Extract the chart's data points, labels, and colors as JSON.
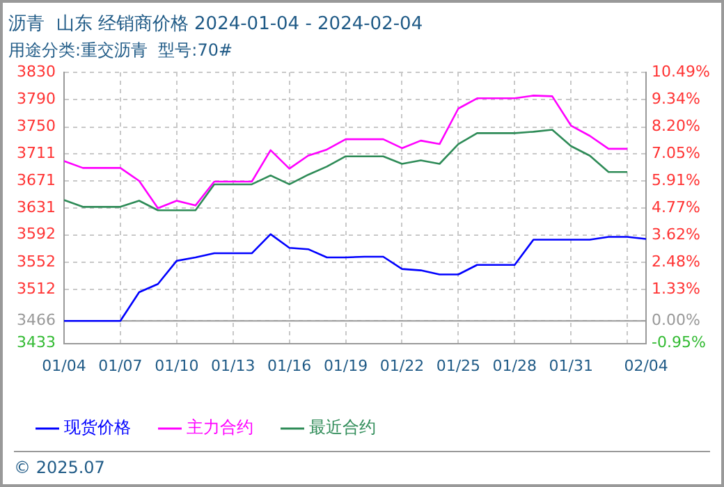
{
  "chart_data": {
    "type": "line",
    "title": "沥青  山东 经销商价格 2024-01-04 - 2024-02-04",
    "subtitle": "用途分类:重交沥青  型号:70#",
    "x": [
      "2024-01-04",
      "2024-01-05",
      "2024-01-06",
      "2024-01-07",
      "2024-01-08",
      "2024-01-09",
      "2024-01-10",
      "2024-01-11",
      "2024-01-12",
      "2024-01-13",
      "2024-01-14",
      "2024-01-15",
      "2024-01-16",
      "2024-01-17",
      "2024-01-18",
      "2024-01-19",
      "2024-01-20",
      "2024-01-21",
      "2024-01-22",
      "2024-01-23",
      "2024-01-24",
      "2024-01-25",
      "2024-01-26",
      "2024-01-27",
      "2024-01-28",
      "2024-01-29",
      "2024-01-30",
      "2024-01-31",
      "2024-02-01",
      "2024-02-02",
      "2024-02-03",
      "2024-02-04"
    ],
    "series": [
      {
        "name": "现货价格",
        "color": "#0000ff",
        "values": [
          3466,
          3466,
          3466,
          3466,
          3508,
          3520,
          3554,
          3559,
          3565,
          3565,
          3565,
          3593,
          3573,
          3571,
          3559,
          3559,
          3560,
          3560,
          3542,
          3540,
          3534,
          3534,
          3548,
          3548,
          3548,
          3585,
          3585,
          3585,
          3585,
          3589,
          3589,
          3586
        ]
      },
      {
        "name": "主力合约",
        "color": "#ff00ff",
        "values": [
          3700,
          3690,
          3690,
          3690,
          3671,
          3631,
          3642,
          3635,
          3670,
          3670,
          3670,
          3716,
          3689,
          3708,
          3717,
          3732,
          3732,
          3732,
          3719,
          3730,
          3725,
          3777,
          3792,
          3792,
          3792,
          3796,
          3795,
          3752,
          3737,
          3718,
          3718,
          null
        ]
      },
      {
        "name": "最近合约",
        "color": "#2e8b57",
        "values": [
          3643,
          3633,
          3633,
          3633,
          3642,
          3628,
          3628,
          3628,
          3666,
          3666,
          3666,
          3679,
          3666,
          3680,
          3692,
          3707,
          3707,
          3707,
          3696,
          3701,
          3696,
          3725,
          3741,
          3741,
          3741,
          3743,
          3746,
          3722,
          3708,
          3684,
          3684,
          null
        ]
      }
    ],
    "xlim": [
      "2024-01-04",
      "2024-02-04"
    ],
    "xticks": [
      {
        "value": "2024-01-04",
        "label": "01/04"
      },
      {
        "value": "2024-01-07",
        "label": "01/07"
      },
      {
        "value": "2024-01-10",
        "label": "01/10"
      },
      {
        "value": "2024-01-13",
        "label": "01/13"
      },
      {
        "value": "2024-01-16",
        "label": "01/16"
      },
      {
        "value": "2024-01-19",
        "label": "01/19"
      },
      {
        "value": "2024-01-22",
        "label": "01/22"
      },
      {
        "value": "2024-01-25",
        "label": "01/25"
      },
      {
        "value": "2024-01-28",
        "label": "01/28"
      },
      {
        "value": "2024-01-31",
        "label": "01/31"
      },
      {
        "value": "2024-02-03",
        "label": null
      },
      {
        "value": "2024-02-04",
        "label": "02/04"
      }
    ],
    "ylim": [
      3433,
      3830
    ],
    "yticks": [
      3433,
      3466,
      3512,
      3552,
      3592,
      3631,
      3671,
      3711,
      3750,
      3790,
      3830
    ],
    "y2lim": [
      -0.95,
      10.49
    ],
    "y2ticks": [
      {
        "value": -0.95,
        "label": "-0.95%"
      },
      {
        "value": 0,
        "label": "0.00%"
      },
      {
        "value": 1.33,
        "label": "1.33%"
      },
      {
        "value": 2.48,
        "label": "2.48%"
      },
      {
        "value": 3.62,
        "label": "3.62%"
      },
      {
        "value": 4.77,
        "label": "4.77%"
      },
      {
        "value": 5.91,
        "label": "5.91%"
      },
      {
        "value": 7.05,
        "label": "7.05%"
      },
      {
        "value": 8.2,
        "label": "8.20%"
      },
      {
        "value": 9.34,
        "label": "9.34%"
      },
      {
        "value": 10.49,
        "label": "10.49%"
      }
    ],
    "ref_lines": [
      {
        "axis": "y2",
        "value": 0,
        "color": "#999999",
        "line_style": "solid"
      }
    ],
    "grid": true,
    "legend": "bottom",
    "marker": "none",
    "line_style": "solid",
    "annotations": [
      "© 2025.07"
    ]
  }
}
